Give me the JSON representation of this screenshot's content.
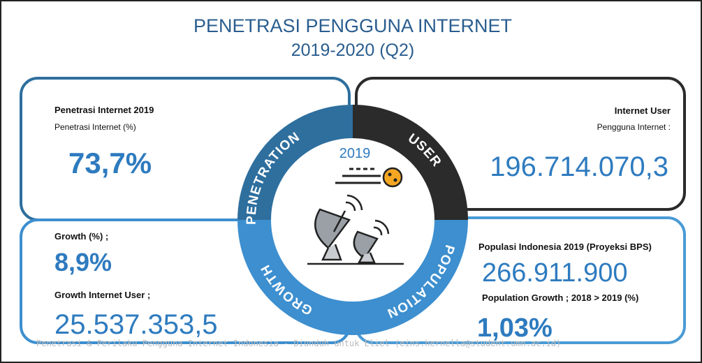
{
  "header": {
    "title": "PENETRASI PENGGUNA INTERNET",
    "subtitle": "2019-2020 (Q2)"
  },
  "center": {
    "year": "2019",
    "segments": [
      "PENETRATION",
      "USER",
      "GROWTH",
      "POPULATION"
    ]
  },
  "panels": {
    "penetration": {
      "label": "Penetrasi Internet 2019",
      "sublabel": "Penetrasi Internet (%)",
      "value": "73,7%"
    },
    "user": {
      "label": "Internet User",
      "sublabel": "Pengguna Internet :",
      "value": "196.714.070,3"
    },
    "growth": {
      "label": "Growth (%) ;",
      "value": "8,9%",
      "label2": "Growth Internet User ;",
      "value2": "25.537.353,5"
    },
    "population": {
      "label": "Populasi Indonesia 2019 (Proyeksi BPS)",
      "value": "266.911.900",
      "label2": "Population Growth ; 2018 > 2019 (%)",
      "value2": "1,03%"
    }
  },
  "footer": {
    "watermark": "Penetrasi & Perilaku Pengguna Internet Indonesia - Diunduh untuk Eliel (eins.hernella@student.umn.ac.id)"
  }
}
